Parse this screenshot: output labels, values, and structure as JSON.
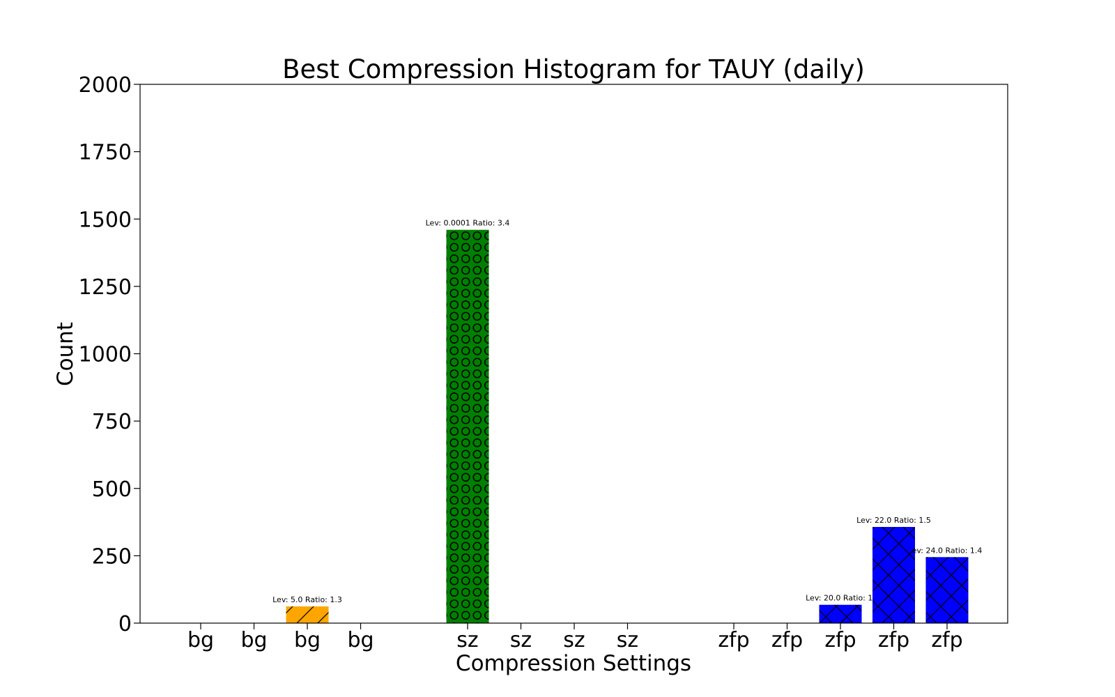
{
  "chart_data": {
    "type": "bar",
    "title": "Best Compression Histogram for TAUY (daily)",
    "xlabel": "Compression Settings",
    "ylabel": "Count",
    "ylim": [
      0,
      2000
    ],
    "yticks": [
      0,
      250,
      500,
      750,
      1000,
      1250,
      1500,
      1750,
      2000
    ],
    "grid": false,
    "legend": "none",
    "categories": [
      "bg",
      "bg",
      "bg",
      "bg",
      "sz",
      "sz",
      "sz",
      "sz",
      "zfp",
      "zfp",
      "zfp",
      "zfp",
      "zfp"
    ],
    "groups": [
      {
        "name": "bg",
        "color": "#ffa500",
        "hatch": "diagonal"
      },
      {
        "name": "sz",
        "color": "#008000",
        "hatch": "circles"
      },
      {
        "name": "zfp",
        "color": "#0000ff",
        "hatch": "crosshatch"
      }
    ],
    "values": [
      0,
      0,
      62,
      0,
      1460,
      0,
      0,
      0,
      0,
      0,
      68,
      357,
      245
    ],
    "annotations": [
      {
        "index": 2,
        "text": "Lev: 5.0 Ratio: 1.3"
      },
      {
        "index": 4,
        "text": "Lev: 0.0001 Ratio: 3.4"
      },
      {
        "index": 10,
        "text": "Lev: 20.0 Ratio: 1."
      },
      {
        "index": 11,
        "text": "Lev: 22.0 Ratio: 1.5"
      },
      {
        "index": 12,
        "text": "ev: 24.0 Ratio: 1.4"
      }
    ]
  }
}
